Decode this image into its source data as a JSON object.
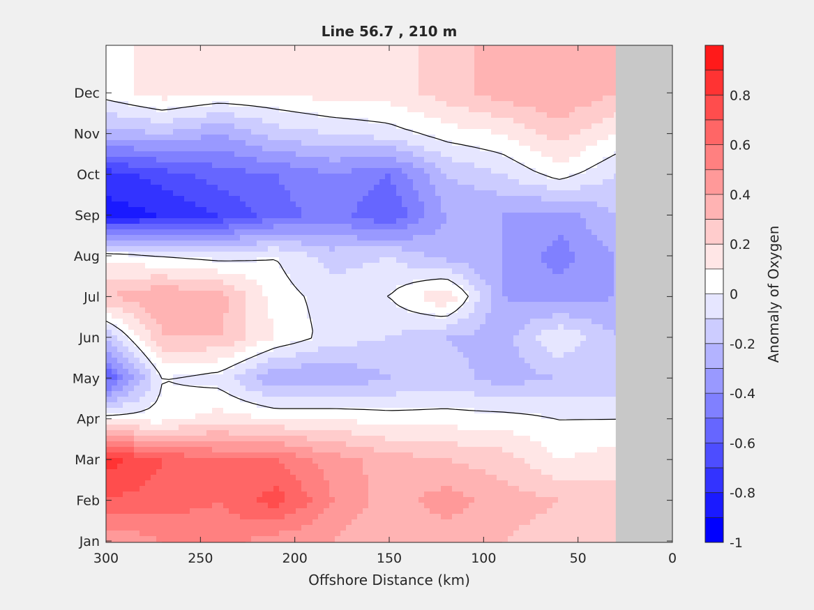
{
  "chart_data": {
    "type": "heatmap",
    "subtype": "filled-contour",
    "title": "Line 56.7 , 210 m",
    "xlabel": "Offshore Distance (km)",
    "ylabel": "",
    "xlim": [
      300,
      0
    ],
    "x_direction": "reversed",
    "xticks": [
      300,
      250,
      200,
      150,
      100,
      50,
      0
    ],
    "yticks": [
      "Jan",
      "Feb",
      "Mar",
      "Apr",
      "May",
      "Jun",
      "Jul",
      "Aug",
      "Sep",
      "Oct",
      "Nov",
      "Dec"
    ],
    "colorbar": {
      "label": "Anomaly of Oxygen",
      "range": [
        -1,
        1
      ],
      "ticks": [
        "-1",
        "-0.8",
        "-0.6",
        "-0.4",
        "-0.2",
        "0",
        "0.2",
        "0.4",
        "0.6",
        "0.8"
      ],
      "levels": [
        -1,
        -0.9,
        -0.8,
        -0.7,
        -0.6,
        -0.5,
        -0.4,
        -0.3,
        -0.2,
        -0.1,
        0,
        0.1,
        0.2,
        0.3,
        0.4,
        0.5,
        0.6,
        0.7,
        0.8,
        0.9,
        1
      ],
      "colors": [
        "#0000ff",
        "#1a1aff",
        "#3333ff",
        "#4d4dff",
        "#6666ff",
        "#8080ff",
        "#9999ff",
        "#b3b3ff",
        "#ccccff",
        "#e6e6ff",
        "#ffffff",
        "#ffe6e6",
        "#ffcccc",
        "#ffb3b3",
        "#ff9999",
        "#ff8080",
        "#ff6666",
        "#ff4d4d",
        "#ff3333",
        "#ff1a1a"
      ]
    },
    "masked_region": {
      "x_range": [
        30,
        0
      ],
      "color": "#c8c8c8"
    },
    "zero_contour": true,
    "approx_anomaly_grid": {
      "x_km": [
        300,
        270,
        240,
        210,
        180,
        150,
        120,
        90,
        60,
        30
      ],
      "months": [
        "Jan",
        "Feb",
        "Mar",
        "Apr",
        "May",
        "Jun",
        "Jul",
        "Aug",
        "Sep",
        "Oct",
        "Nov",
        "Dec"
      ],
      "values": [
        [
          0.4,
          0.5,
          0.55,
          0.45,
          0.4,
          0.3,
          0.35,
          0.3,
          0.25,
          0.2
        ],
        [
          0.7,
          0.65,
          0.6,
          0.75,
          0.5,
          0.35,
          0.45,
          0.35,
          0.3,
          0.25
        ],
        [
          0.85,
          0.7,
          0.6,
          0.6,
          0.45,
          0.35,
          0.3,
          0.25,
          0.1,
          0.15
        ],
        [
          0.05,
          0.05,
          0.15,
          0.1,
          0.1,
          0.05,
          0.05,
          0.05,
          0.0,
          0.0
        ],
        [
          -0.6,
          0.0,
          -0.05,
          -0.3,
          -0.3,
          -0.2,
          -0.15,
          -0.25,
          -0.2,
          -0.2
        ],
        [
          -0.2,
          0.3,
          0.3,
          0.1,
          -0.05,
          -0.1,
          -0.2,
          -0.25,
          0.0,
          -0.2
        ],
        [
          0.3,
          0.4,
          0.35,
          0.05,
          -0.05,
          0.0,
          0.2,
          -0.3,
          -0.35,
          -0.3
        ],
        [
          0.05,
          0.0,
          -0.05,
          0.0,
          -0.15,
          -0.1,
          -0.25,
          -0.3,
          -0.45,
          -0.3
        ],
        [
          -0.85,
          -0.8,
          -0.7,
          -0.55,
          -0.45,
          -0.6,
          -0.3,
          -0.3,
          -0.35,
          -0.2
        ],
        [
          -0.75,
          -0.65,
          -0.55,
          -0.5,
          -0.4,
          -0.5,
          -0.2,
          -0.1,
          0.05,
          -0.1
        ],
        [
          -0.25,
          -0.2,
          -0.3,
          -0.15,
          -0.1,
          -0.05,
          0.05,
          0.1,
          0.25,
          0.1
        ],
        [
          0.05,
          0.15,
          0.1,
          0.1,
          0.15,
          0.15,
          0.25,
          0.35,
          0.4,
          0.3
        ]
      ]
    }
  }
}
